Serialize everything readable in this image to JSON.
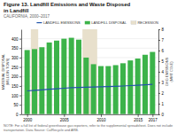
{
  "chart_data": {
    "type": "bar",
    "title": "Figure 13. Landfill Emissions and Waste Disposed\nin Landfill",
    "subtitle": "CALIFORNIA, 2000–2017",
    "footnote": "NOTE: For a full list of federal greenhouse gas reporters, refer to the supplemental spreadsheet. Does not include transportation. Data Source: CalRecycle and ARB.",
    "x": [
      2000,
      2001,
      2002,
      2003,
      2004,
      2005,
      2006,
      2007,
      2008,
      2009,
      2010,
      2011,
      2012,
      2013,
      2014,
      2015,
      2016,
      2017
    ],
    "xlim": [
      1999.2,
      2017.8
    ],
    "xticks": [
      2000,
      2005,
      2010,
      2015,
      2017
    ],
    "ylabel": "MATERIAL DISPOSAL\n(MILLION TONS)",
    "ylim": [
      0,
      450
    ],
    "yticks": [
      0,
      50,
      100,
      150,
      200,
      250,
      300,
      350,
      400
    ],
    "y2label": "GHG EMISSIONS\n(MMT CO₂E)",
    "y2lim": [
      0,
      8
    ],
    "y2ticks": [
      0,
      1,
      2,
      3,
      4,
      5,
      6,
      7,
      8
    ],
    "grid": true,
    "legend": "upper right",
    "series": [
      {
        "name": "LANDFILL EMISSIONS",
        "type": "line",
        "axis": "y2",
        "color": "#2255aa",
        "values": [
          2.2,
          2.25,
          2.3,
          2.35,
          2.4,
          2.45,
          2.5,
          2.52,
          2.54,
          2.56,
          2.58,
          2.6,
          2.63,
          2.66,
          2.7,
          2.74,
          2.78,
          2.82
        ]
      },
      {
        "name": "LANDFILL DISPOSAL",
        "type": "bar",
        "color": "#3cb34a",
        "values": [
          340,
          345,
          355,
          380,
          390,
          400,
          405,
          395,
          300,
          265,
          255,
          255,
          260,
          270,
          285,
          295,
          315,
          330
        ]
      }
    ],
    "recessions": {
      "name": "RECESSION",
      "color": "#e8e0cc",
      "ranges": [
        [
          2000.5,
          2001.5
        ],
        [
          2007.5,
          2009.5
        ]
      ]
    }
  }
}
